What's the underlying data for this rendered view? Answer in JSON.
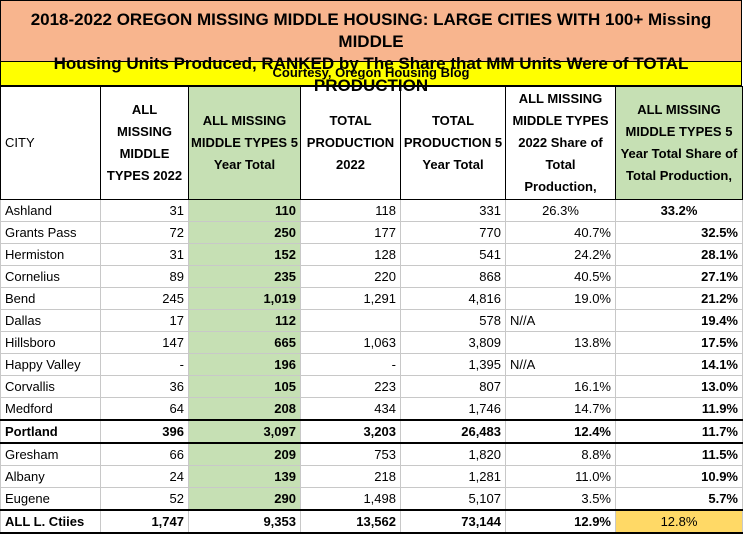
{
  "header": {
    "title_line1": "2018-2022 OREGON MISSING MIDDLE HOUSING: LARGE CITIES WITH 100+ Missing MIDDLE",
    "title_line2": "Housing Units Produced, RANKED by The Share that MM Units Were of TOTAL PRODUCTION",
    "courtesy": "Courtesy, Oregon Housing Blog"
  },
  "table": {
    "columns": [
      "CITY",
      "ALL MISSING MIDDLE TYPES 2022",
      "ALL MISSING MIDDLE TYPES 5 Year Total",
      "TOTAL PRODUCTION 2022",
      "TOTAL PRODUCTION 5 Year Total",
      "ALL MISSING MIDDLE TYPES 2022 Share of Total Production,",
      "ALL MISSING MIDDLE TYPES 5 Year Total Share of Total Production,"
    ],
    "rows": [
      [
        "Ashland",
        "31",
        "110",
        "118",
        "331",
        "26.3%",
        "33.2%"
      ],
      [
        "Grants Pass",
        "72",
        "250",
        "177",
        "770",
        "40.7%",
        "32.5%"
      ],
      [
        "Hermiston",
        "31",
        "152",
        "128",
        "541",
        "24.2%",
        "28.1%"
      ],
      [
        "Cornelius",
        "89",
        "235",
        "220",
        "868",
        "40.5%",
        "27.1%"
      ],
      [
        "Bend",
        "245",
        "1,019",
        "1,291",
        "4,816",
        "19.0%",
        "21.2%"
      ],
      [
        "Dallas",
        "17",
        "112",
        null,
        "578",
        "N//A",
        "19.4%"
      ],
      [
        "Hillsboro",
        "147",
        "665",
        "1,063",
        "3,809",
        "13.8%",
        "17.5%"
      ],
      [
        "Happy Valley",
        "-",
        "196",
        "-",
        "1,395",
        "N//A",
        "14.1%"
      ],
      [
        "Corvallis",
        "36",
        "105",
        "223",
        "807",
        "16.1%",
        "13.0%"
      ],
      [
        "Medford",
        "64",
        "208",
        "434",
        "1,746",
        "14.7%",
        "11.9%"
      ],
      [
        "Portland",
        "396",
        "3,097",
        "3,203",
        "26,483",
        "12.4%",
        "11.7%"
      ],
      [
        "Gresham",
        "66",
        "209",
        "753",
        "1,820",
        "8.8%",
        "11.5%"
      ],
      [
        "Albany",
        "24",
        "139",
        "218",
        "1,281",
        "11.0%",
        "10.9%"
      ],
      [
        "Eugene",
        "52",
        "290",
        "1,498",
        "5,107",
        "3.5%",
        "5.7%"
      ],
      [
        "ALL L. Ctiies",
        "1,747",
        "9,353",
        "13,562",
        "73,144",
        "12.9%",
        "12.8%"
      ]
    ]
  }
}
